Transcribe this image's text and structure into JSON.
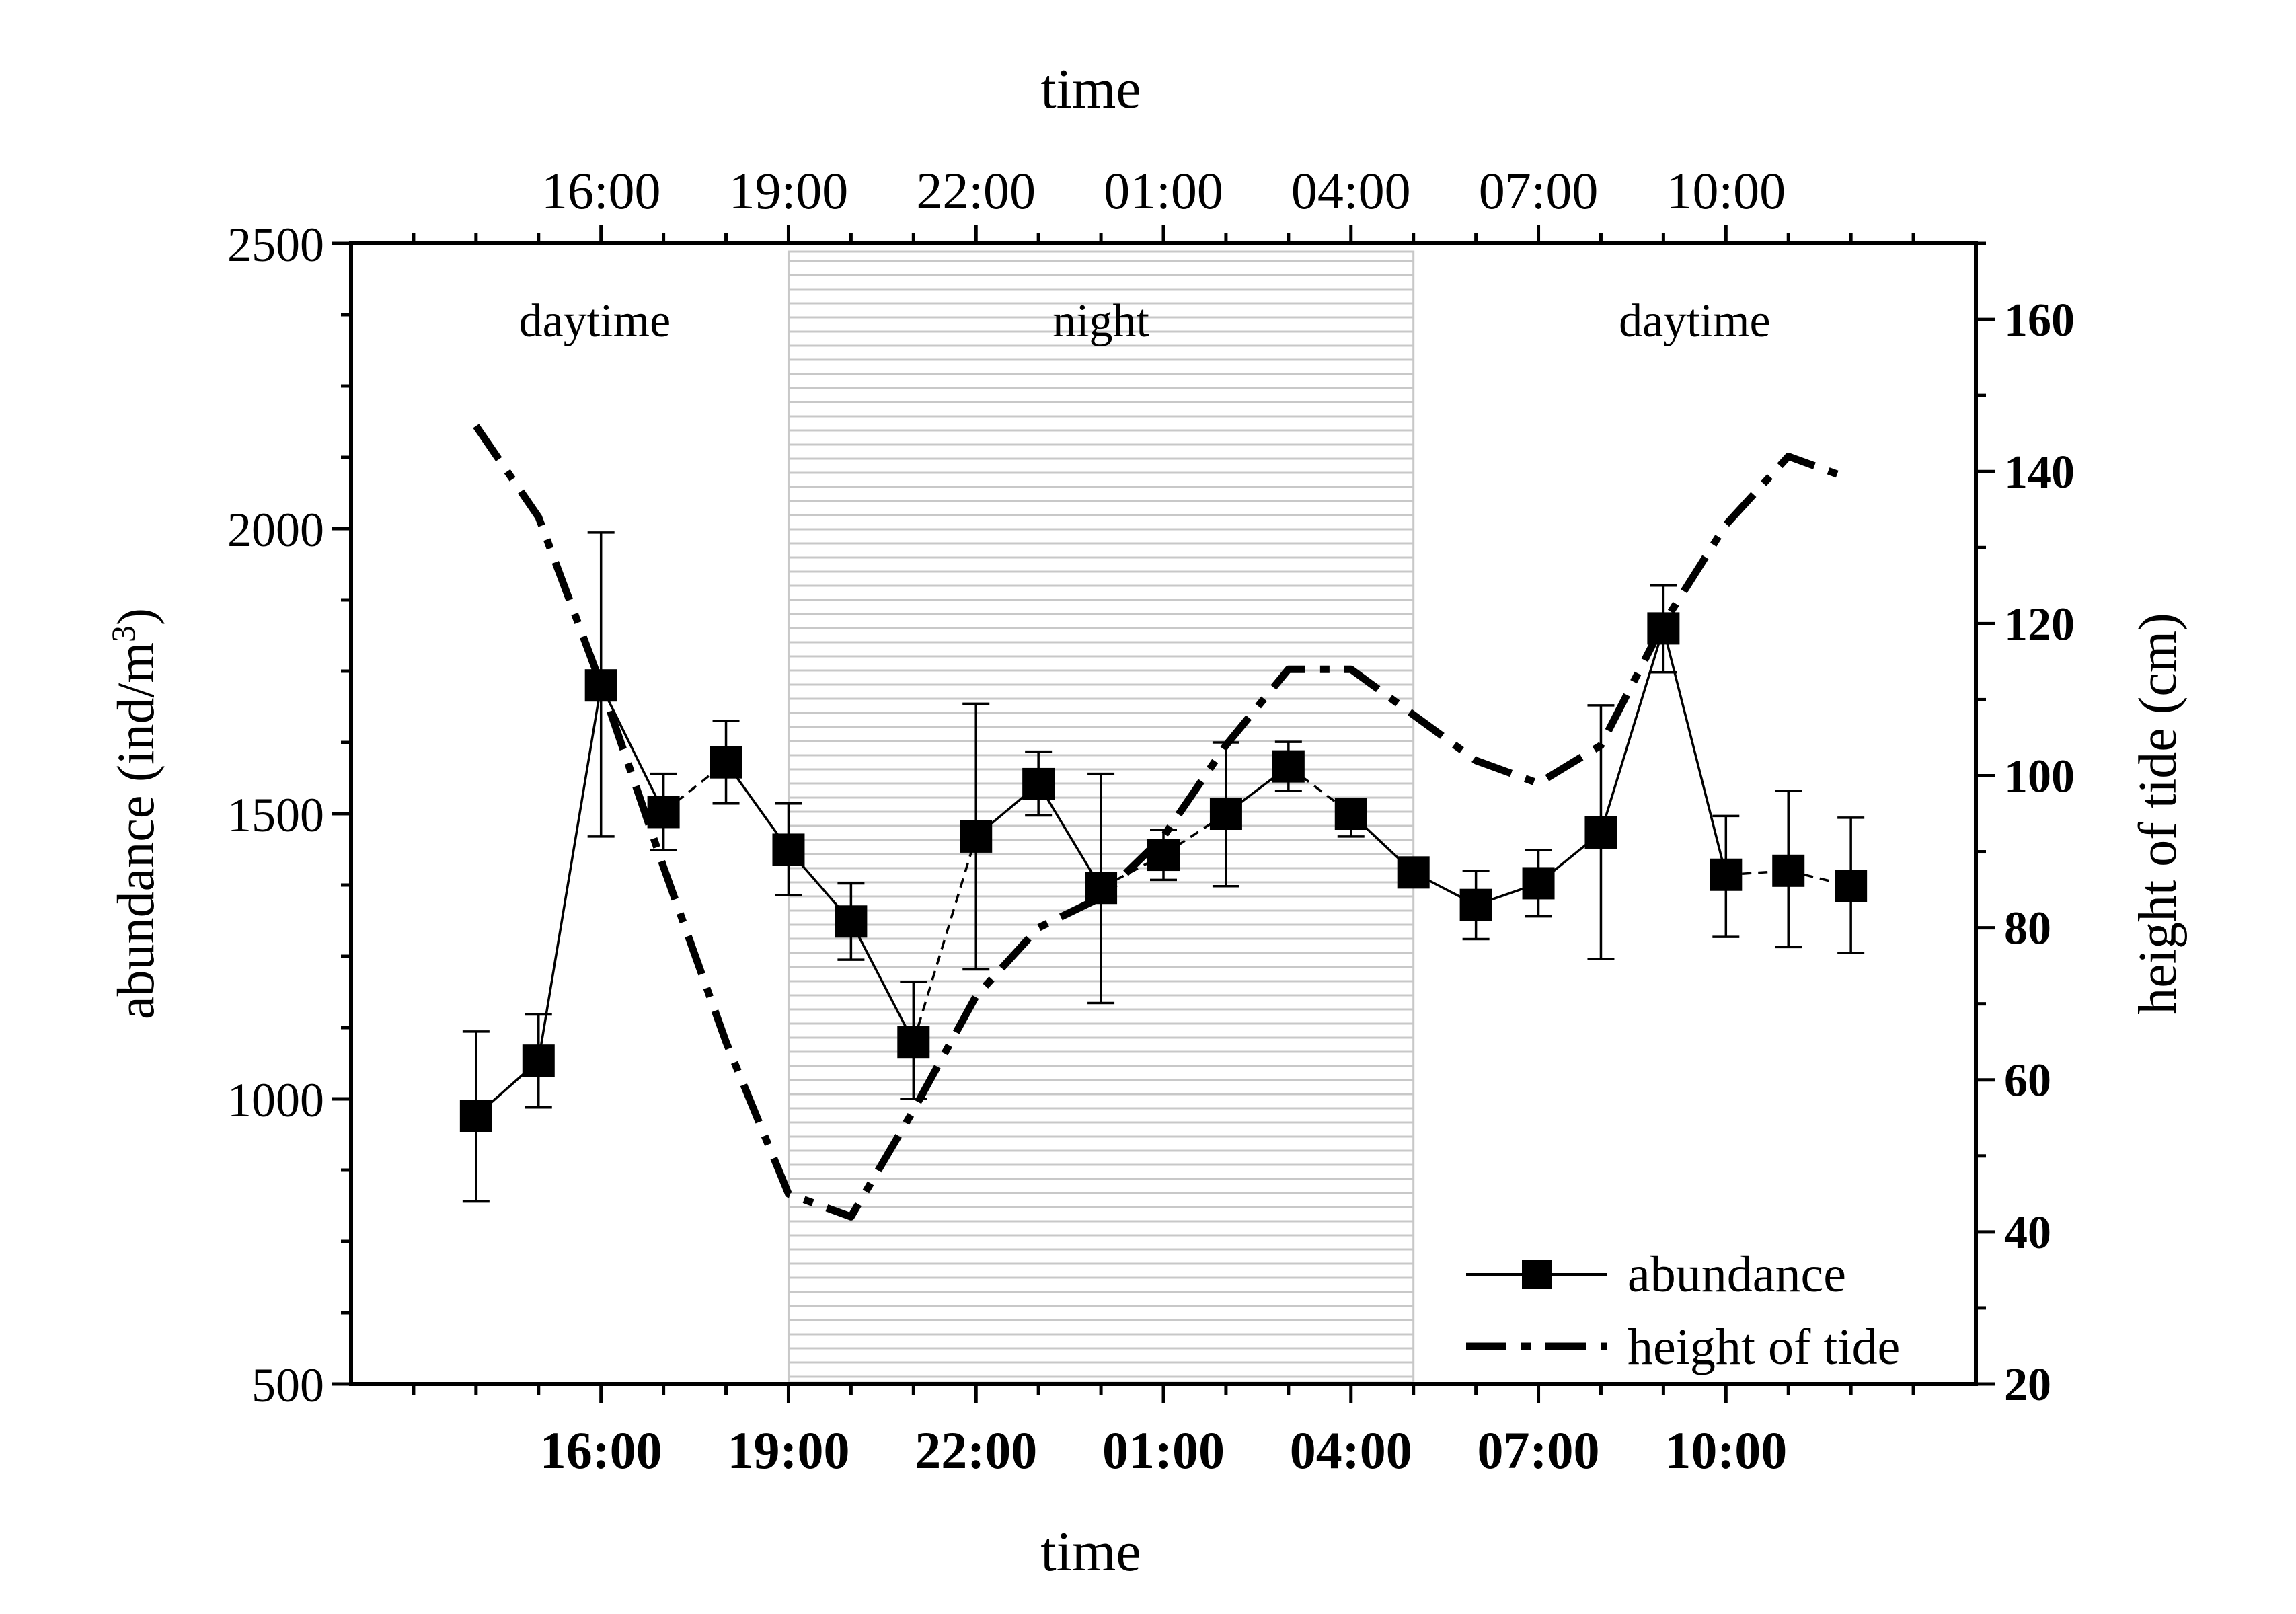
{
  "chart_data": {
    "type": "line",
    "x_label_top": "time",
    "x_label_bottom": "time",
    "y_label_left": "abundance (ind/m³)",
    "y_label_left_main": "abundance (ind/m",
    "y_label_left_sup": "3",
    "y_label_left_close": ")",
    "y_label_right": "height of tide (cm)",
    "x_tick_labels": [
      "16:00",
      "19:00",
      "22:00",
      "01:00",
      "04:00",
      "07:00",
      "10:00"
    ],
    "x_tick_hours": [
      16,
      19,
      22,
      25,
      28,
      31,
      34
    ],
    "xlim_hours": [
      12,
      38
    ],
    "ylim_left": [
      500,
      2500
    ],
    "y_ticks_left": [
      500,
      1000,
      1500,
      2000,
      2500
    ],
    "ylim_right": [
      20,
      170
    ],
    "y_ticks_right": [
      20,
      40,
      60,
      80,
      100,
      120,
      140,
      160
    ],
    "regions": [
      {
        "label": "daytime",
        "start": 12,
        "end": 19,
        "shaded": false
      },
      {
        "label": "night",
        "start": 19,
        "end": 29,
        "shaded": true
      },
      {
        "label": "daytime",
        "start": 29,
        "end": 38,
        "shaded": false
      }
    ],
    "series": [
      {
        "name": "abundance",
        "axis": "left",
        "style": "solid-square",
        "x": [
          14,
          15,
          16,
          17,
          18,
          19,
          20,
          21,
          22,
          23,
          24,
          25,
          26,
          27,
          28,
          29,
          30,
          31,
          32,
          33,
          34,
          35,
          36
        ],
        "values": [
          970,
          1067,
          1725,
          1503,
          1590,
          1437,
          1311,
          1100,
          1460,
          1552,
          1370,
          1428,
          1500,
          1583,
          1500,
          1397,
          1340,
          1378,
          1467,
          1825,
          1393,
          1400,
          1373
        ],
        "err_low": [
          820,
          985,
          1460,
          1436,
          1518,
          1357,
          1244,
          1000,
          1227,
          1497,
          1168,
          1384,
          1373,
          1540,
          1460,
          1397,
          1280,
          1320,
          1245,
          1748,
          1284,
          1266,
          1256
        ],
        "err_high": [
          1118,
          1148,
          1993,
          1570,
          1663,
          1518,
          1378,
          1205,
          1693,
          1609,
          1570,
          1472,
          1625,
          1626,
          1525,
          1397,
          1400,
          1436,
          1690,
          1900,
          1496,
          1540,
          1493
        ],
        "segment_styles": [
          "solid",
          "solid",
          "solid",
          "dashed",
          "solid",
          "solid",
          "solid",
          "dashed",
          "solid",
          "solid",
          "dashed",
          "dashed",
          "solid",
          "dashed",
          "solid",
          "solid",
          "solid",
          "solid",
          "solid",
          "solid",
          "dashed",
          "dashed"
        ]
      },
      {
        "name": "height of tide",
        "axis": "right",
        "style": "dash-dot",
        "x": [
          14,
          15,
          16,
          17,
          18,
          19,
          20,
          21,
          22,
          23,
          24,
          25,
          26,
          27,
          28,
          29,
          30,
          31,
          32,
          33,
          34,
          35,
          36
        ],
        "values": [
          146,
          134,
          112,
          88,
          65,
          45,
          42,
          56,
          71,
          80,
          84,
          92,
          104,
          114,
          114,
          108,
          102,
          99,
          104,
          120,
          133,
          142,
          139
        ]
      }
    ]
  }
}
